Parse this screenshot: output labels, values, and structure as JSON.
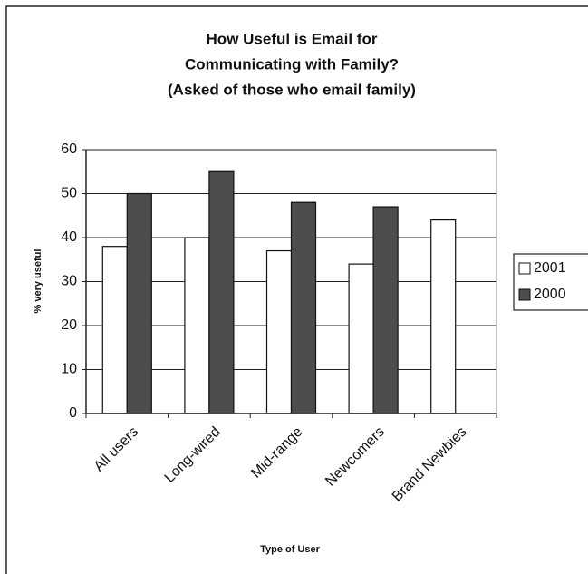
{
  "chart_data": {
    "type": "bar",
    "title": [
      "How Useful is Email for",
      "Communicating with Family?"
    ],
    "subtitle": "(Asked of those who email family)",
    "x_label": "Type of User",
    "y_label": "% very useful",
    "categories": [
      "All users",
      "Long-wired",
      "Mid-range",
      "Newcomers",
      "Brand Newbies"
    ],
    "series": [
      {
        "name": "2001",
        "color": "#ffffff",
        "values": [
          38,
          40,
          37,
          34,
          44
        ]
      },
      {
        "name": "2000",
        "color": "#4d4d4d",
        "values": [
          50,
          55,
          48,
          47,
          null
        ]
      }
    ],
    "ylim": [
      0,
      60
    ],
    "yticks": [
      0,
      10,
      20,
      30,
      40,
      50,
      60
    ],
    "grid": true,
    "legend": "right"
  }
}
